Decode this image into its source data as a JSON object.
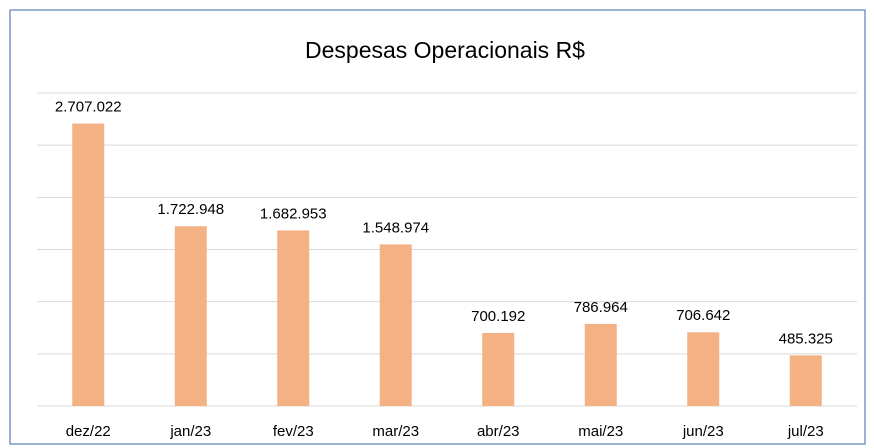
{
  "chart_data": {
    "type": "bar",
    "title": "Despesas Operacionais R$",
    "categories": [
      "dez/22",
      "jan/23",
      "fev/23",
      "mar/23",
      "abr/23",
      "mai/23",
      "jun/23",
      "jul/23"
    ],
    "values": [
      2707022,
      1722948,
      1682953,
      1548974,
      700192,
      786964,
      706642,
      485325
    ],
    "value_labels": [
      "2.707.022",
      "1.722.948",
      "1.682.953",
      "1.548.974",
      "700.192",
      "786.964",
      "706.642",
      "485.325"
    ],
    "color": "#f4b183",
    "ylim": [
      0,
      3000000
    ],
    "yticks": [
      0,
      500000,
      1000000,
      1500000,
      2000000,
      2500000,
      3000000
    ],
    "grid": true,
    "ytick_labels": false
  }
}
